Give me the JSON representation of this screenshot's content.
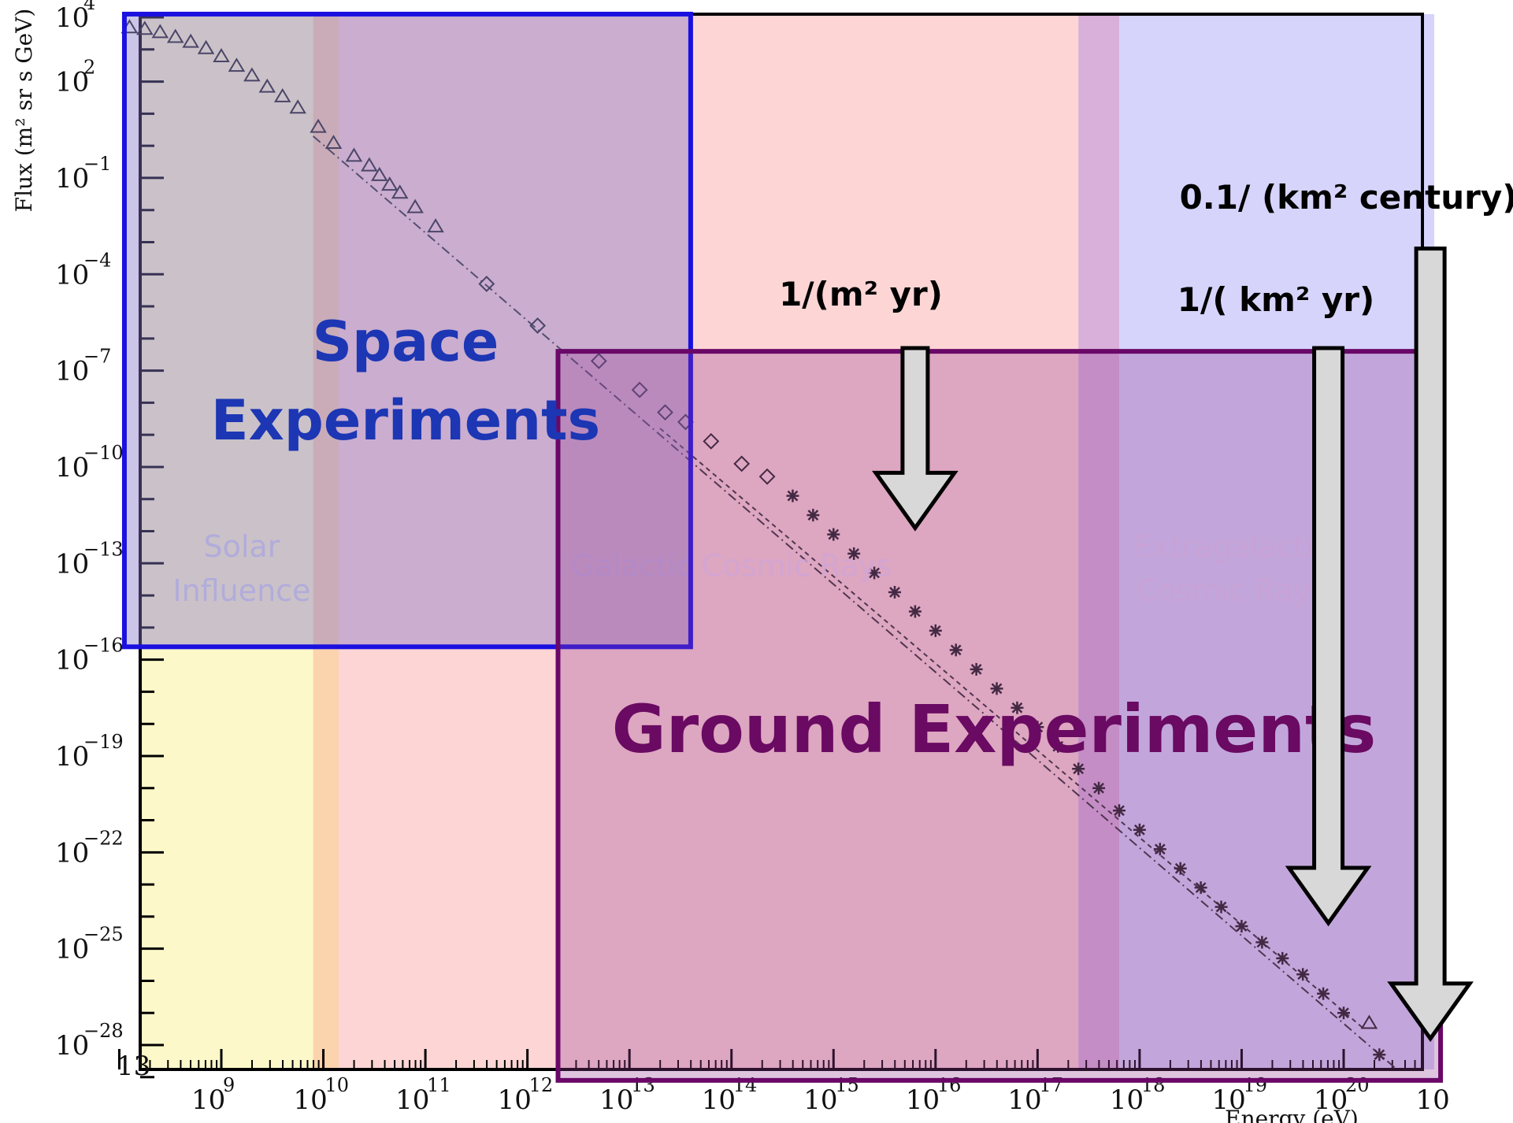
{
  "chart_data": {
    "type": "scatter",
    "xlabel": "Energy (eV)",
    "ylabel": "Flux (m² sr s GeV)",
    "xscale": "log",
    "yscale": "log",
    "xlim": [
      100000000,
      100000000000000000000
    ],
    "ylim": [
      1e-29,
      10000
    ],
    "x_tick_exponents": [
      9,
      10,
      11,
      12,
      13,
      14,
      15,
      16,
      17,
      18,
      19,
      20
    ],
    "y_tick_exponents": [
      4,
      2,
      -1,
      -4,
      -7,
      -10,
      -13,
      -16,
      -19,
      -22,
      -25,
      -28
    ],
    "x_tick_labels": [
      "10^9",
      "10^10",
      "10^11",
      "10^12",
      "10^13",
      "10^14",
      "10^15",
      "10^16",
      "10^17",
      "10^18",
      "10^19",
      "10^20"
    ],
    "last_x_tick_partial": "10",
    "series": [
      {
        "marker": "triangle",
        "log10_x": [
          8.1,
          8.25,
          8.4,
          8.55,
          8.7,
          8.85,
          9.0,
          9.15,
          9.3,
          9.45,
          9.6,
          9.75,
          9.95,
          10.1,
          10.3,
          10.45,
          10.55,
          10.65,
          10.75,
          10.9,
          11.1,
          20.25
        ],
        "log10_y": [
          3.7,
          3.65,
          3.55,
          3.4,
          3.25,
          3.05,
          2.8,
          2.5,
          2.2,
          1.85,
          1.55,
          1.2,
          0.6,
          0.1,
          -0.3,
          -0.6,
          -0.9,
          -1.2,
          -1.45,
          -1.9,
          -2.5,
          -27.3
        ]
      },
      {
        "marker": "diamond",
        "log10_x": [
          11.6,
          12.1,
          12.7,
          13.1,
          13.35,
          13.55,
          13.8,
          14.1,
          14.35
        ],
        "log10_y": [
          -4.3,
          -5.6,
          -6.7,
          -7.6,
          -8.3,
          -8.6,
          -9.2,
          -9.9,
          -10.3
        ]
      },
      {
        "marker": "star",
        "log10_x": [
          14.6,
          14.8,
          15.0,
          15.2,
          15.4,
          15.6,
          15.8,
          16.0,
          16.2,
          16.4,
          16.6,
          16.8,
          17.0,
          17.2,
          17.4,
          17.6,
          17.8,
          18.0,
          18.2,
          18.4,
          18.6,
          18.8,
          19.0,
          19.2,
          19.4,
          19.6,
          19.8,
          20.0,
          20.35
        ],
        "log10_y": [
          -10.9,
          -11.5,
          -12.1,
          -12.7,
          -13.3,
          -13.9,
          -14.5,
          -15.1,
          -15.7,
          -16.3,
          -16.9,
          -17.5,
          -18.1,
          -18.7,
          -19.4,
          -20.0,
          -20.7,
          -21.3,
          -21.9,
          -22.5,
          -23.1,
          -23.7,
          -24.3,
          -24.8,
          -25.3,
          -25.8,
          -26.4,
          -27.0,
          -28.3
        ]
      }
    ],
    "fit_lines": [
      {
        "style": "dash-dot",
        "log10_x": [
          9.9,
          20.5
        ],
        "log10_y": [
          0.3,
          -28.7
        ]
      },
      {
        "style": "dashed",
        "log10_x": [
          13.3,
          20.2
        ],
        "log10_y": [
          -8.8,
          -27.5
        ]
      }
    ],
    "regions": [
      {
        "name": "Solar Influence",
        "log10_x_range": [
          8.0,
          9.9
        ],
        "color": "#fdf8c9"
      },
      {
        "name": "",
        "log10_x_range": [
          9.9,
          10.15
        ],
        "color": "#fbd3ad"
      },
      {
        "name": "Galactic Cosmic Rays",
        "log10_x_range": [
          10.15,
          17.4
        ],
        "color": "#fdd5d5"
      },
      {
        "name": "",
        "log10_x_range": [
          17.4,
          17.8
        ],
        "color": "#d8b0da"
      },
      {
        "name": "Extragalactic Cosmic Rays",
        "log10_x_range": [
          17.8,
          21
        ],
        "color": "#d6d4fa"
      }
    ],
    "boxes": [
      {
        "label_lines": [
          "Space",
          "Experiments"
        ],
        "log10_x_range": [
          8.05,
          13.6
        ],
        "log10_y_range": [
          -15.6,
          4.1
        ],
        "fill": "rgba(130,120,200,0.42)",
        "stroke": "#1a10e0",
        "text_color": "#1c36b4"
      },
      {
        "label_lines": [
          "Ground Experiments"
        ],
        "log10_x_range": [
          12.3,
          20.95
        ],
        "log10_y_range": [
          -29.1,
          -6.4
        ],
        "fill": "rgba(150,60,150,0.30)",
        "stroke": "#6a0868",
        "text_color": "#6a0a62"
      }
    ],
    "rate_annotations": [
      {
        "label": "1/(m² yr)",
        "log10_x": 15.8,
        "arrow_from_log10_y": -6.3,
        "arrow_to_log10_y": -11.9
      },
      {
        "label": "1/( km² yr)",
        "log10_x": 19.85,
        "arrow_from_log10_y": -6.3,
        "arrow_to_log10_y": -24.2
      },
      {
        "label": "0.1/ (km² century)",
        "log10_x": 20.85,
        "arrow_from_log10_y": -3.2,
        "arrow_to_log10_y": -27.8
      }
    ]
  },
  "text": {
    "ylabel": "Flux (m² sr s GeV)",
    "xlabel": "Energy (eV)",
    "space_line1": "Space",
    "space_line2": "Experiments",
    "ground": "Ground Experiments",
    "solar_line1": "Solar",
    "solar_line2": "Influence",
    "galactic": "Galactic Cosmic Rays",
    "extragalactic_line1": "Extragalactic",
    "extragalactic_line2": "Cosmic Rays",
    "rate1": "1/(m² yr)",
    "rate2": "1/( km² yr)",
    "rate3": "0.1/ (km² century)",
    "page_number": "13"
  }
}
